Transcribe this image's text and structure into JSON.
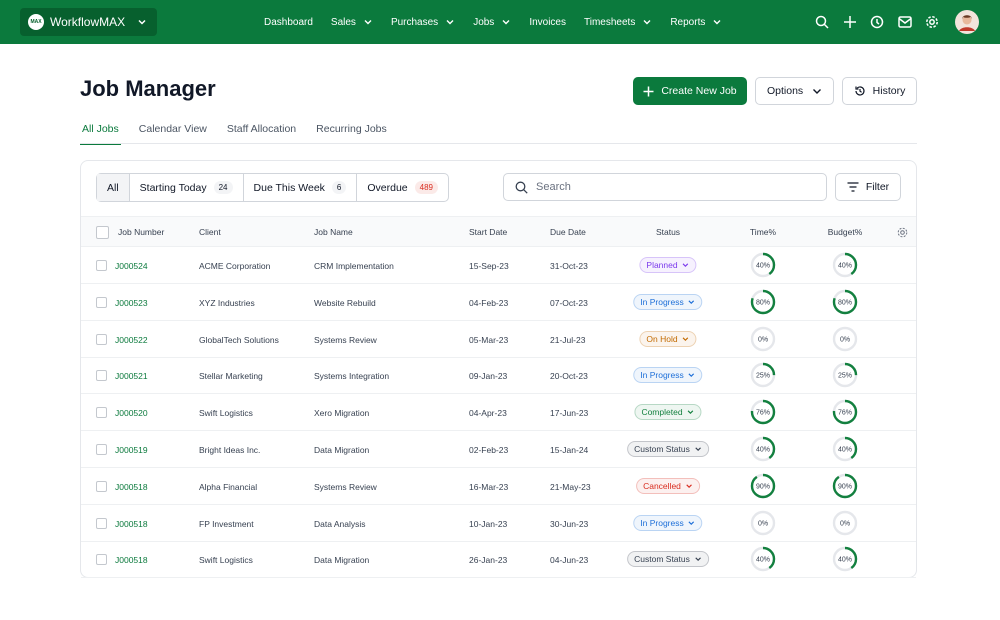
{
  "header": {
    "logo": "MAX",
    "brand": "WorkflowMAX",
    "nav": [
      {
        "label": "Dashboard",
        "dropdown": false
      },
      {
        "label": "Sales",
        "dropdown": true
      },
      {
        "label": "Purchases",
        "dropdown": true
      },
      {
        "label": "Jobs",
        "dropdown": true
      },
      {
        "label": "Invoices",
        "dropdown": false
      },
      {
        "label": "Timesheets",
        "dropdown": true
      },
      {
        "label": "Reports",
        "dropdown": true
      }
    ]
  },
  "page": {
    "title": "Job Manager",
    "actions": {
      "create": "Create New Job",
      "options": "Options",
      "history": "History"
    },
    "tabs": [
      "All Jobs",
      "Calendar View",
      "Staff Allocation",
      "Recurring Jobs"
    ]
  },
  "filters": {
    "chips": [
      {
        "label": "All"
      },
      {
        "label": "Starting Today",
        "count": 24
      },
      {
        "label": "Due This Week",
        "count": 6
      },
      {
        "label": "Overdue",
        "count": 489,
        "color": "#d92d20"
      }
    ],
    "search": "Search",
    "filter": "Filter"
  },
  "table": {
    "columns": [
      "Job Number",
      "Client",
      "Job Name",
      "Start Date",
      "Due Date",
      "Status",
      "Time%",
      "Budget%"
    ],
    "rows": [
      {
        "job": "J000524",
        "client": "ACME Corporation",
        "name": "CRM Implementation",
        "start": "15-Sep-23",
        "due": "31-Oct-23",
        "status": {
          "label": "Planned",
          "color": "#7c3aed"
        },
        "time": {
          "value": 40,
          "label": "40%"
        },
        "budget": {
          "value": 40,
          "label": "40%"
        }
      },
      {
        "job": "J000523",
        "client": "XYZ Industries",
        "name": "Website Rebuild",
        "start": "04-Feb-23",
        "due": "07-Oct-23",
        "status": {
          "label": "In Progress",
          "color": "#1d6fd8"
        },
        "time": {
          "value": 80,
          "label": "80%"
        },
        "budget": {
          "value": 80,
          "label": "80%"
        }
      },
      {
        "job": "J000522",
        "client": "GlobalTech Solutions",
        "name": "Systems Review",
        "start": "05-Mar-23",
        "due": "21-Jul-23",
        "status": {
          "label": "On Hold",
          "color": "#c26a00"
        },
        "time": {
          "value": 0,
          "label": "0%"
        },
        "budget": {
          "value": 0,
          "label": "0%"
        }
      },
      {
        "job": "J000521",
        "client": "Stellar Marketing",
        "name": "Systems Integration",
        "start": "09-Jan-23",
        "due": "20-Oct-23",
        "status": {
          "label": "In Progress",
          "color": "#1d6fd8"
        },
        "time": {
          "value": 25,
          "label": "25%"
        },
        "budget": {
          "value": 25,
          "label": "25%"
        }
      },
      {
        "job": "J000520",
        "client": "Swift Logistics",
        "name": "Xero Migration",
        "start": "04-Apr-23",
        "due": "17-Jun-23",
        "status": {
          "label": "Completed",
          "color": "#13803f"
        },
        "time": {
          "value": 76,
          "label": "76%"
        },
        "budget": {
          "value": 76,
          "label": "76%"
        }
      },
      {
        "job": "J000519",
        "client": "Bright Ideas Inc.",
        "name": "Data Migration",
        "start": "02-Feb-23",
        "due": "15-Jan-24",
        "status": {
          "label": "Custom Status",
          "color": "#374151"
        },
        "time": {
          "value": 40,
          "label": "40%"
        },
        "budget": {
          "value": 40,
          "label": "40%"
        }
      },
      {
        "job": "J000518",
        "client": "Alpha Financial",
        "name": "Systems Review",
        "start": "16-Mar-23",
        "due": "21-May-23",
        "status": {
          "label": "Cancelled",
          "color": "#d92d20"
        },
        "time": {
          "value": 90,
          "label": "90%"
        },
        "budget": {
          "value": 90,
          "label": "90%"
        }
      },
      {
        "job": "J000518",
        "client": "FP Investment",
        "name": "Data Analysis",
        "start": "10-Jan-23",
        "due": "30-Jun-23",
        "status": {
          "label": "In Progress",
          "color": "#1d6fd8"
        },
        "time": {
          "value": 0,
          "label": "0%"
        },
        "budget": {
          "value": 0,
          "label": "0%"
        }
      },
      {
        "job": "J000518",
        "client": "Swift Logistics",
        "name": "Data Migration",
        "start": "26-Jan-23",
        "due": "04-Jun-23",
        "status": {
          "label": "Custom Status",
          "color": "#374151"
        },
        "time": {
          "value": 40,
          "label": "40%"
        },
        "budget": {
          "value": 40,
          "label": "40%"
        }
      }
    ]
  }
}
